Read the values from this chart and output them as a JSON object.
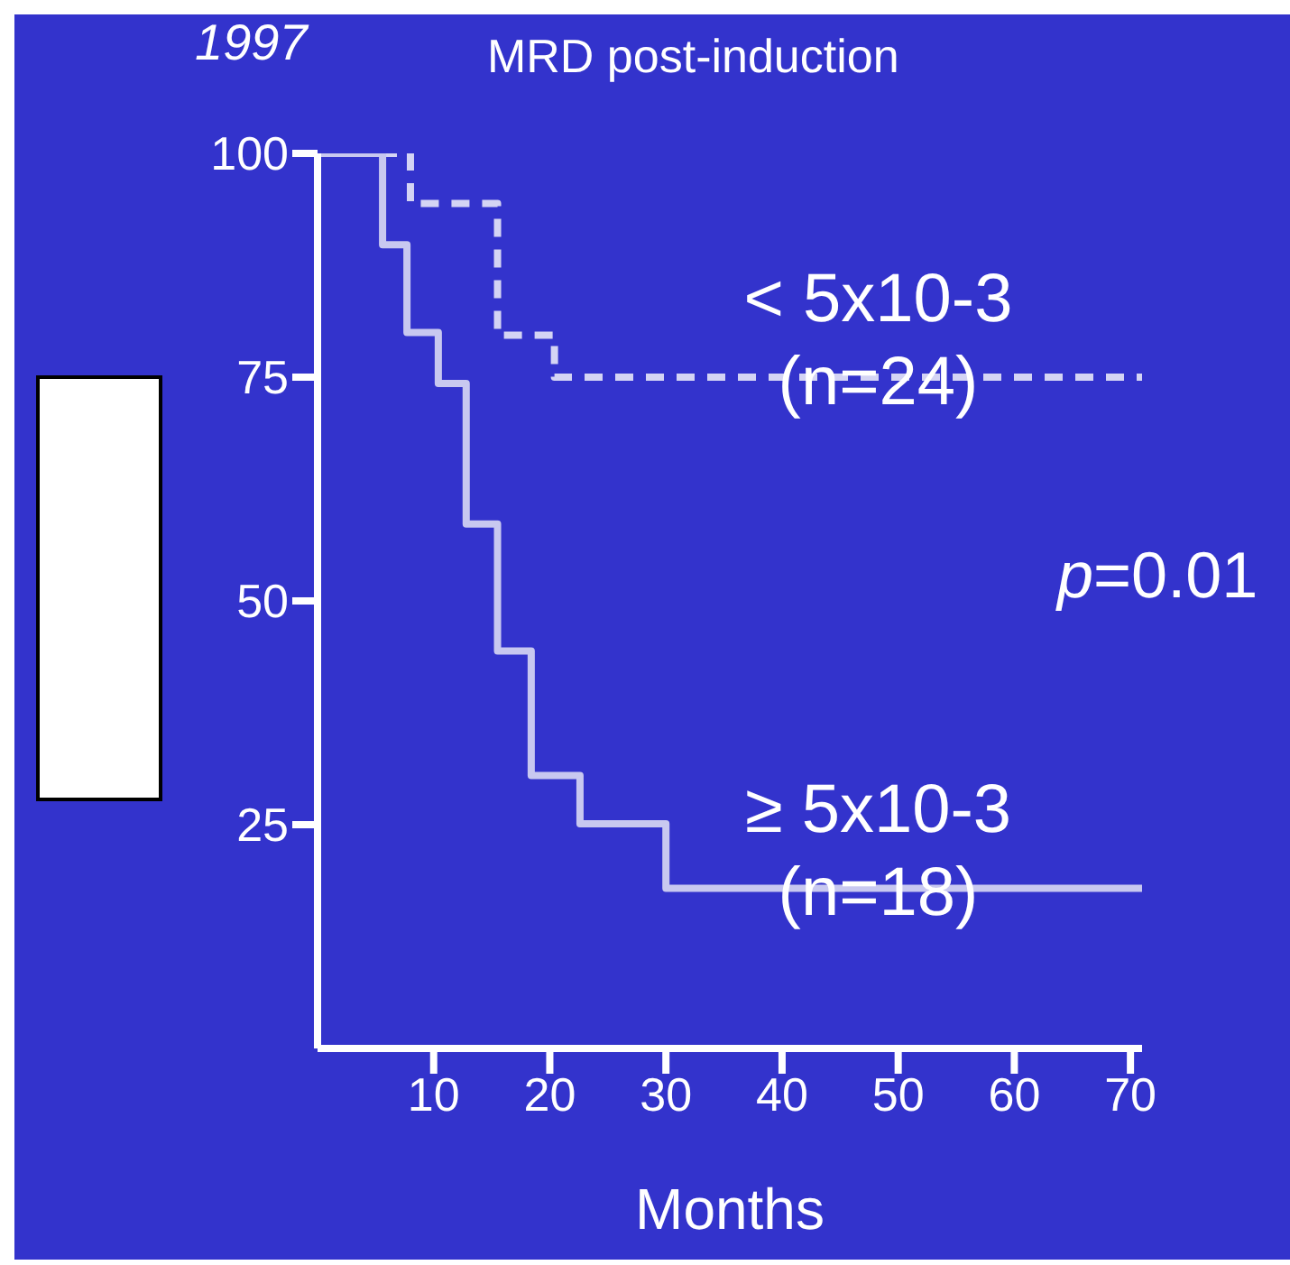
{
  "chart_data": {
    "type": "step",
    "title": "1997",
    "subtitle": "MRD post-induction",
    "xlabel": "Months",
    "xlim": [
      0,
      71
    ],
    "xticks": [
      10,
      20,
      30,
      40,
      50,
      60,
      70
    ],
    "ylim": [
      0,
      100
    ],
    "yticks": [
      25,
      50,
      75,
      100
    ],
    "marker": "none",
    "series": [
      {
        "name": "< 5x10-3\n(n=24)",
        "color": "#d4d4f4",
        "line_style": "dashed",
        "x": [
          0,
          8,
          15.5,
          20.4,
          71
        ],
        "values": [
          100,
          94.4,
          79.7,
          75,
          75
        ]
      },
      {
        "name": "≥ 5x10-3\n(n=18)",
        "color": "#c8c8f0",
        "line_style": "solid",
        "x": [
          0,
          5.6,
          7.7,
          10.4,
          12.8,
          15.5,
          18.4,
          22.6,
          30,
          71
        ],
        "values": [
          100,
          89.8,
          80,
          74.3,
          58.6,
          44.4,
          30.5,
          25.1,
          17.9,
          17.9
        ]
      }
    ],
    "annotations": [
      "p=0.01"
    ]
  }
}
